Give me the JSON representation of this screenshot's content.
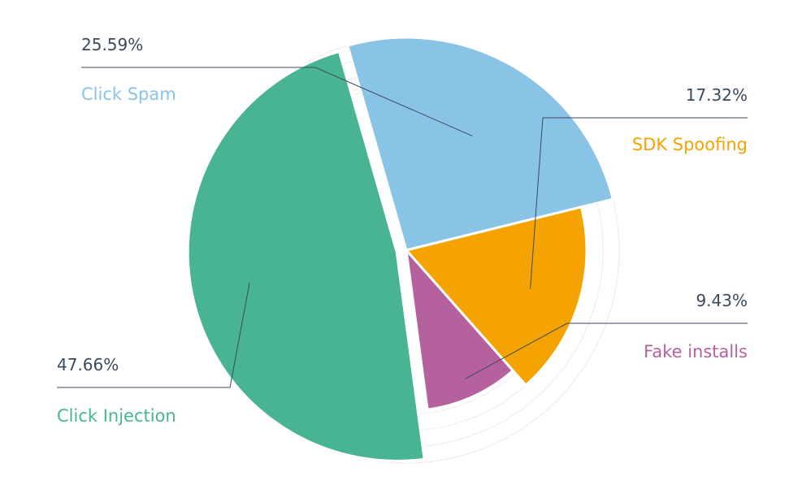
{
  "chart_data": {
    "type": "pie",
    "title": "",
    "legend": "none",
    "slices": [
      {
        "label": "Click Spam",
        "value": 25.59,
        "value_label": "25.59%",
        "color": "#89c3e6"
      },
      {
        "label": "SDK Spoofing",
        "value": 17.32,
        "value_label": "17.32%",
        "color": "#f5a300"
      },
      {
        "label": "Fake installs",
        "value": 9.43,
        "value_label": "9.43%",
        "color": "#b5619e"
      },
      {
        "label": "Click Injection",
        "value": 47.66,
        "value_label": "47.66%",
        "color": "#48b494"
      }
    ]
  }
}
